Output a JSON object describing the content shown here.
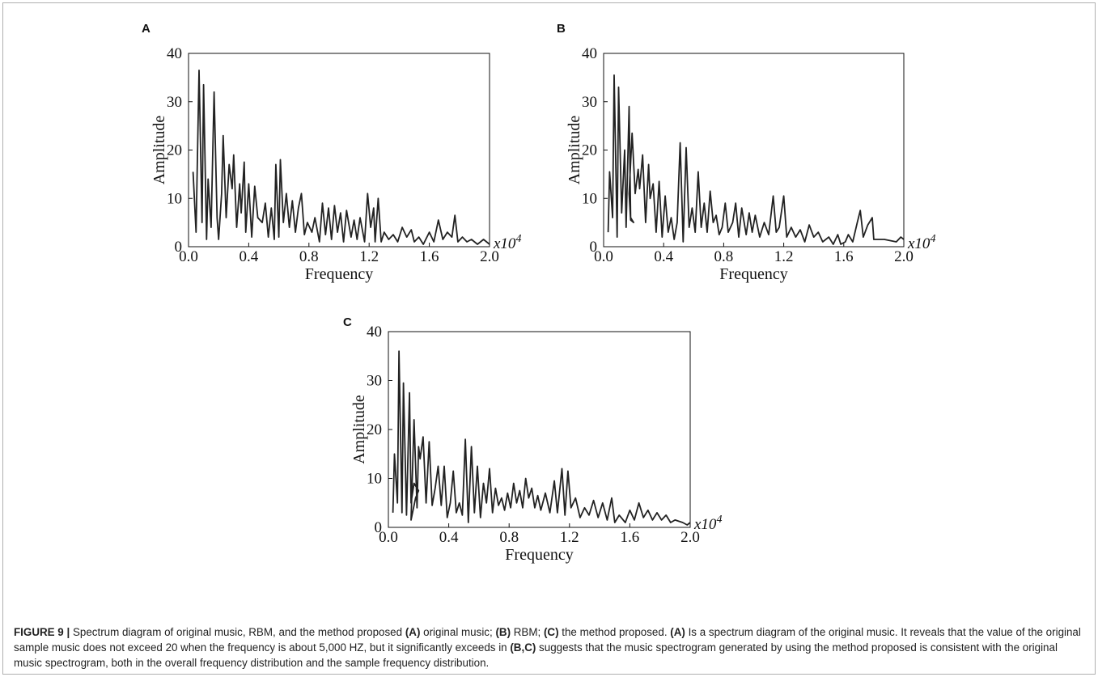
{
  "chart_data": [
    {
      "type": "line",
      "panel_label": "A",
      "x_label": "Frequency",
      "y_label": "Amplitude",
      "x_multiplier": "x10",
      "x_multiplier_exponent": "4",
      "color": "#222222",
      "xlim": [
        0,
        2
      ],
      "ylim": [
        0,
        40
      ],
      "xticks": [
        {
          "value": 0,
          "label": "0.0"
        },
        0.4,
        0.8,
        1.2,
        1.6,
        {
          "value": 2,
          "label": "2.0"
        }
      ],
      "yticks": [
        0,
        10,
        20,
        30,
        40
      ],
      "x": [
        0.03,
        0.05,
        0.07,
        0.09,
        0.1,
        0.12,
        0.13,
        0.15,
        0.17,
        0.19,
        0.2,
        0.22,
        0.23,
        0.25,
        0.27,
        0.29,
        0.3,
        0.32,
        0.34,
        0.35,
        0.37,
        0.38,
        0.4,
        0.42,
        0.44,
        0.46,
        0.49,
        0.51,
        0.53,
        0.55,
        0.57,
        0.58,
        0.6,
        0.61,
        0.63,
        0.65,
        0.67,
        0.69,
        0.71,
        0.73,
        0.75,
        0.77,
        0.79,
        0.82,
        0.84,
        0.87,
        0.89,
        0.91,
        0.93,
        0.95,
        0.97,
        0.99,
        1.01,
        1.03,
        1.05,
        1.08,
        1.1,
        1.12,
        1.14,
        1.17,
        1.19,
        1.21,
        1.23,
        1.24,
        1.26,
        1.28,
        1.3,
        1.33,
        1.36,
        1.39,
        1.42,
        1.45,
        1.48,
        1.5,
        1.53,
        1.56,
        1.6,
        1.63,
        1.66,
        1.69,
        1.72,
        1.75,
        1.77,
        1.79,
        1.82,
        1.85,
        1.88,
        1.92,
        1.96,
        2.0
      ],
      "values": [
        15.5,
        3,
        36.5,
        5,
        33.5,
        1.5,
        14,
        4,
        32,
        6,
        1.5,
        11,
        23,
        6,
        17,
        12,
        19,
        4,
        13,
        7,
        17.5,
        3,
        13,
        2,
        12.5,
        6,
        5,
        9,
        2,
        8,
        1.5,
        17,
        2,
        18,
        5,
        11,
        4,
        9.5,
        3,
        8,
        11,
        2.5,
        5,
        3,
        6,
        1,
        9,
        2.5,
        8,
        1.5,
        8.5,
        3,
        7,
        1,
        7.5,
        2,
        5.5,
        1.5,
        6,
        1,
        11,
        4,
        8,
        1,
        10,
        1,
        3,
        1.5,
        2.5,
        1,
        4,
        2,
        3.5,
        1,
        2,
        0.5,
        3,
        1,
        5.5,
        1.5,
        3,
        2,
        6.5,
        1,
        2,
        1,
        1.5,
        0.5,
        1.5,
        0.5
      ]
    },
    {
      "type": "line",
      "panel_label": "B",
      "x_label": "Frequency",
      "y_label": "Amplitude",
      "x_multiplier": "x10",
      "x_multiplier_exponent": "4",
      "color": "#222222",
      "xlim": [
        0,
        2
      ],
      "ylim": [
        0,
        40
      ],
      "xticks": [
        {
          "value": 0,
          "label": "0.0"
        },
        0.4,
        0.8,
        1.2,
        1.6,
        {
          "value": 2,
          "label": "2.0"
        }
      ],
      "yticks": [
        0,
        10,
        20,
        30,
        40
      ],
      "x": [
        0.03,
        0.04,
        0.06,
        0.07,
        0.09,
        0.1,
        0.12,
        0.14,
        0.15,
        0.17,
        0.18,
        0.2,
        0.18,
        0.17,
        0.19,
        0.21,
        0.23,
        0.24,
        0.26,
        0.28,
        0.3,
        0.31,
        0.33,
        0.35,
        0.37,
        0.39,
        0.41,
        0.43,
        0.45,
        0.47,
        0.49,
        0.51,
        0.53,
        0.55,
        0.57,
        0.59,
        0.61,
        0.63,
        0.65,
        0.67,
        0.69,
        0.71,
        0.73,
        0.75,
        0.77,
        0.79,
        0.81,
        0.83,
        0.86,
        0.88,
        0.9,
        0.92,
        0.95,
        0.97,
        0.99,
        1.01,
        1.04,
        1.07,
        1.1,
        1.13,
        1.15,
        1.17,
        1.2,
        1.22,
        1.25,
        1.28,
        1.31,
        1.34,
        1.37,
        1.4,
        1.43,
        1.46,
        1.5,
        1.53,
        1.56,
        1.58,
        1.61,
        1.63,
        1.66,
        1.69,
        1.71,
        1.73,
        1.76,
        1.79,
        1.8,
        1.87,
        1.95,
        1.98,
        2.0
      ],
      "values": [
        3,
        15.5,
        6,
        35.5,
        2,
        33,
        7,
        20,
        4,
        29,
        6,
        5,
        5.5,
        11,
        23.5,
        11,
        16,
        12,
        19,
        5,
        17,
        10,
        13,
        3,
        13.5,
        2,
        10.5,
        3,
        6,
        1.5,
        5,
        21.5,
        1,
        20.5,
        4,
        8,
        3,
        15.5,
        4,
        9,
        3,
        11.5,
        5,
        6.5,
        2.5,
        4,
        9,
        3,
        5,
        9,
        2,
        8,
        2.5,
        7,
        3,
        6.5,
        2,
        5,
        2.5,
        10.5,
        3,
        4,
        10.5,
        2,
        4,
        2,
        3.5,
        1,
        4.5,
        2,
        3,
        1,
        2,
        0.5,
        2.5,
        0.5,
        1,
        2.5,
        1,
        5,
        7.5,
        2,
        4.5,
        6,
        1.5,
        1.5,
        1,
        2,
        1.5
      ]
    },
    {
      "type": "line",
      "panel_label": "C",
      "x_label": "Frequency",
      "y_label": "Amplitude",
      "x_multiplier": "x10",
      "x_multiplier_exponent": "4",
      "color": "#222222",
      "xlim": [
        0,
        2
      ],
      "ylim": [
        0,
        40
      ],
      "xticks": [
        {
          "value": 0,
          "label": "0.0"
        },
        0.4,
        0.8,
        1.2,
        1.6,
        {
          "value": 2,
          "label": "2.0"
        }
      ],
      "yticks": [
        0,
        10,
        20,
        30,
        40
      ],
      "x": [
        0.03,
        0.04,
        0.06,
        0.07,
        0.09,
        0.1,
        0.12,
        0.14,
        0.15,
        0.17,
        0.2,
        0.18,
        0.15,
        0.17,
        0.19,
        0.2,
        0.21,
        0.23,
        0.25,
        0.27,
        0.29,
        0.31,
        0.33,
        0.35,
        0.37,
        0.39,
        0.41,
        0.43,
        0.45,
        0.47,
        0.49,
        0.51,
        0.53,
        0.55,
        0.57,
        0.59,
        0.61,
        0.63,
        0.65,
        0.67,
        0.69,
        0.71,
        0.73,
        0.75,
        0.77,
        0.79,
        0.81,
        0.83,
        0.85,
        0.87,
        0.89,
        0.91,
        0.93,
        0.95,
        0.97,
        0.99,
        1.01,
        1.04,
        1.07,
        1.1,
        1.12,
        1.15,
        1.17,
        1.19,
        1.21,
        1.24,
        1.27,
        1.3,
        1.33,
        1.36,
        1.39,
        1.42,
        1.45,
        1.48,
        1.5,
        1.53,
        1.57,
        1.6,
        1.63,
        1.66,
        1.69,
        1.72,
        1.75,
        1.78,
        1.81,
        1.84,
        1.87,
        1.9,
        1.95,
        1.98,
        2.0
      ],
      "values": [
        3,
        15,
        5,
        36,
        3,
        29.5,
        2.5,
        27.5,
        5,
        9,
        7.5,
        6,
        1.5,
        22,
        4,
        16.5,
        14,
        18.5,
        5,
        17.5,
        4.5,
        8,
        12.5,
        4.5,
        12.5,
        2,
        5,
        11.5,
        3,
        5,
        2.5,
        18,
        1,
        16.5,
        3,
        12.5,
        2,
        9,
        5,
        12,
        3,
        8,
        4.5,
        6,
        3.5,
        7,
        4,
        9,
        5,
        7.5,
        4,
        10,
        6,
        8,
        4,
        6.5,
        3.5,
        7,
        3,
        9.5,
        3,
        12,
        2.5,
        11.5,
        4,
        6,
        2,
        4,
        2.5,
        5.5,
        2,
        5,
        1.5,
        6,
        1,
        2.5,
        1,
        3.5,
        1.5,
        5,
        2,
        3.5,
        1.5,
        3,
        1.5,
        2.5,
        1,
        1.5,
        1,
        0.5,
        1
      ]
    }
  ],
  "caption": [
    {
      "text": "FIGURE 9 |",
      "bold": true
    },
    {
      "text": " Spectrum diagram of original music, RBM, and the method proposed ",
      "bold": false
    },
    {
      "text": "(A)",
      "bold": true
    },
    {
      "text": " original music; ",
      "bold": false
    },
    {
      "text": "(B)",
      "bold": true
    },
    {
      "text": " RBM; ",
      "bold": false
    },
    {
      "text": "(C)",
      "bold": true
    },
    {
      "text": " the method proposed. ",
      "bold": false
    },
    {
      "text": "(A)",
      "bold": true
    },
    {
      "text": " Is a spectrum diagram of the original music. It reveals that the value of the original sample music does not exceed 20 when the frequency is about 5,000 HZ, but it significantly exceeds in ",
      "bold": false
    },
    {
      "text": "(B,C)",
      "bold": true
    },
    {
      "text": " suggests that the music spectrogram generated by using the method proposed is consistent with the original music spectrogram, both in the overall frequency distribution and the sample frequency distribution.",
      "bold": false
    }
  ]
}
